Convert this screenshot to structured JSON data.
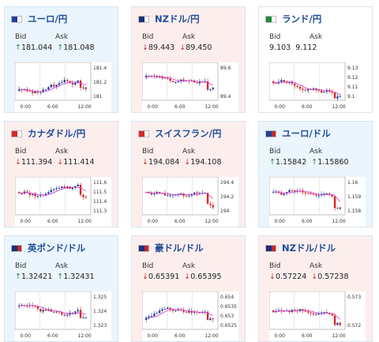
{
  "bid_label": "Bid",
  "ask_label": "Ask",
  "cards": [
    {
      "pair": "ユーロ/円",
      "bid": "181.044",
      "ask": "181.048",
      "dir_bid": "up",
      "dir_ask": "up",
      "flag": [
        "#1f3fa0",
        "#ffffff"
      ],
      "yticks": [
        "181.4",
        "181.2",
        "181"
      ],
      "xticks": [
        "0:00",
        "6:00",
        "12:00"
      ],
      "trend": "up"
    },
    {
      "pair": "NZドル/円",
      "bid": "89.443",
      "ask": "89.450",
      "dir_bid": "down",
      "dir_ask": "down",
      "flag": [
        "#1b2f7a",
        "#ffffff"
      ],
      "yticks": [
        "89.6",
        "89.4"
      ],
      "xticks": [
        "0:00",
        "6:00",
        "12:00"
      ],
      "trend": "down"
    },
    {
      "pair": "ランド/円",
      "bid": "9.103",
      "ask": "9.112",
      "dir_bid": "none",
      "dir_ask": "none",
      "flag": [
        "#1a8a3c",
        "#ffffff"
      ],
      "yticks": [
        "9.13",
        "9.12",
        "9.11",
        "9.1"
      ],
      "xticks": [
        "0:00",
        "6:00",
        "12:00"
      ],
      "trend": "flat"
    },
    {
      "pair": "カナダドル/円",
      "bid": "111.394",
      "ask": "111.414",
      "dir_bid": "down",
      "dir_ask": "down",
      "flag": [
        "#d62828",
        "#ffffff"
      ],
      "yticks": [
        "111.6",
        "111.5",
        "111.4",
        "111.3"
      ],
      "xticks": [
        "0:00",
        "6:00",
        "12:00"
      ],
      "trend": "down"
    },
    {
      "pair": "スイスフラン/円",
      "bid": "194.084",
      "ask": "194.108",
      "dir_bid": "down",
      "dir_ask": "down",
      "flag": [
        "#d62828",
        "#ffffff"
      ],
      "yticks": [
        "194.4",
        "194.2",
        "194"
      ],
      "xticks": [
        "0:00",
        "6:00",
        "12:00"
      ],
      "trend": "down"
    },
    {
      "pair": "ユーロ/ドル",
      "bid": "1.15842",
      "ask": "1.15860",
      "dir_bid": "up",
      "dir_ask": "up",
      "flag": [
        "#1f3fa0",
        "#c62828"
      ],
      "yticks": [
        "1.16",
        "1.159",
        "1.158"
      ],
      "xticks": [
        "0:00",
        "6:00",
        "12:00"
      ],
      "trend": "down"
    },
    {
      "pair": "英ポンド/ドル",
      "bid": "1.32421",
      "ask": "1.32431",
      "dir_bid": "up",
      "dir_ask": "up",
      "flag": [
        "#1b2f7a",
        "#c62828"
      ],
      "yticks": [
        "1.325",
        "1.324",
        "1.323"
      ],
      "xticks": [
        "0:00",
        "6:00",
        "12:00"
      ],
      "trend": "down"
    },
    {
      "pair": "豪ドル/ドル",
      "bid": "0.65391",
      "ask": "0.65395",
      "dir_bid": "down",
      "dir_ask": "down",
      "flag": [
        "#1b2f7a",
        "#c62828"
      ],
      "yticks": [
        "0.654",
        "0.6535",
        "0.653",
        "0.6525"
      ],
      "xticks": [
        "0:00",
        "6:00",
        "12:00"
      ],
      "trend": "up"
    },
    {
      "pair": "NZドル/ドル",
      "bid": "0.57224",
      "ask": "0.57238",
      "dir_bid": "down",
      "dir_ask": "down",
      "flag": [
        "#1b2f7a",
        "#c62828"
      ],
      "yticks": [
        "0.573",
        "0.572"
      ],
      "xticks": [
        "0:00",
        "6:00",
        "12:00"
      ],
      "trend": "flat"
    }
  ]
}
